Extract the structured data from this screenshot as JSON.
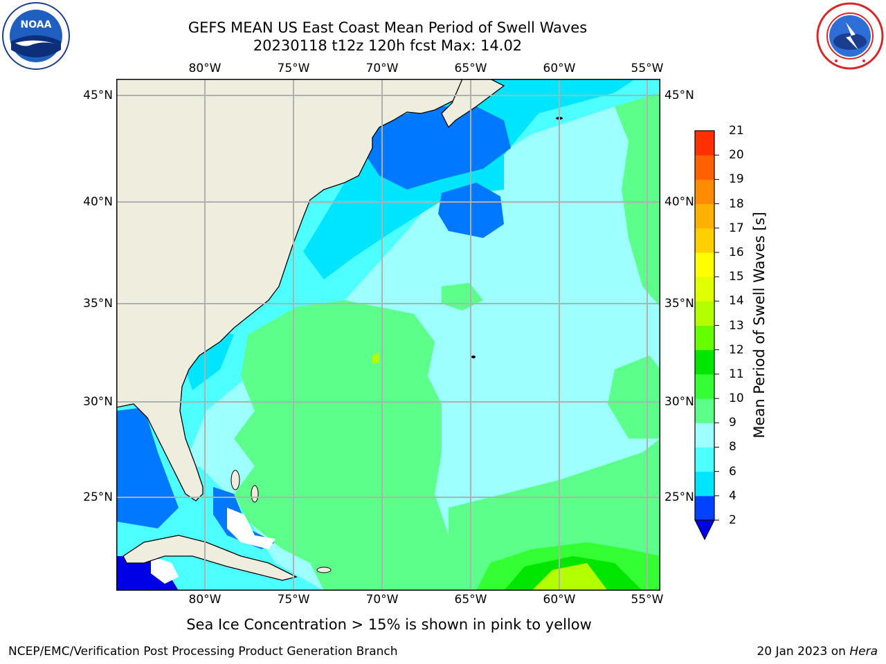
{
  "header": {
    "title": "GEFS MEAN US East Coast Mean Period of Swell Waves",
    "subtitle": "20230118 t12z 120h fcst   Max: 14.02"
  },
  "logos": {
    "left": {
      "icon": "noaa-logo",
      "text": "NOAA"
    },
    "right": {
      "icon": "nws-logo"
    }
  },
  "map": {
    "lon_labels": [
      "80°W",
      "75°W",
      "70°W",
      "65°W",
      "60°W",
      "55°W"
    ],
    "lat_labels": [
      "45°N",
      "40°N",
      "35°N",
      "30°N",
      "25°N"
    ],
    "colors": {
      "land": "#efedde",
      "grid": "#b0b0b0",
      "coast": "#000000"
    }
  },
  "colorbar": {
    "label": "Mean Period of Swell Waves [s]",
    "ticks": [
      "2",
      "4",
      "6",
      "8",
      "9",
      "10",
      "11",
      "12",
      "13",
      "14",
      "15",
      "16",
      "17",
      "18",
      "19",
      "20",
      "21"
    ],
    "colors": [
      "#0042ff",
      "#00e5ff",
      "#4dffff",
      "#9effff",
      "#5cff8a",
      "#33ff33",
      "#00e600",
      "#66ff00",
      "#b3ff00",
      "#e0ff00",
      "#ffff00",
      "#ffd000",
      "#ffb000",
      "#ff8c00",
      "#ff6000",
      "#ff3000",
      "#ff0000"
    ],
    "under_color": "#0000e6"
  },
  "note": "Sea Ice Concentration > 15% is shown in pink to yellow",
  "footer": {
    "left": "NCEP/EMC/Verification Post Processing Product Generation Branch",
    "date": "20 Jan 2023 on ",
    "host": "Hera"
  }
}
